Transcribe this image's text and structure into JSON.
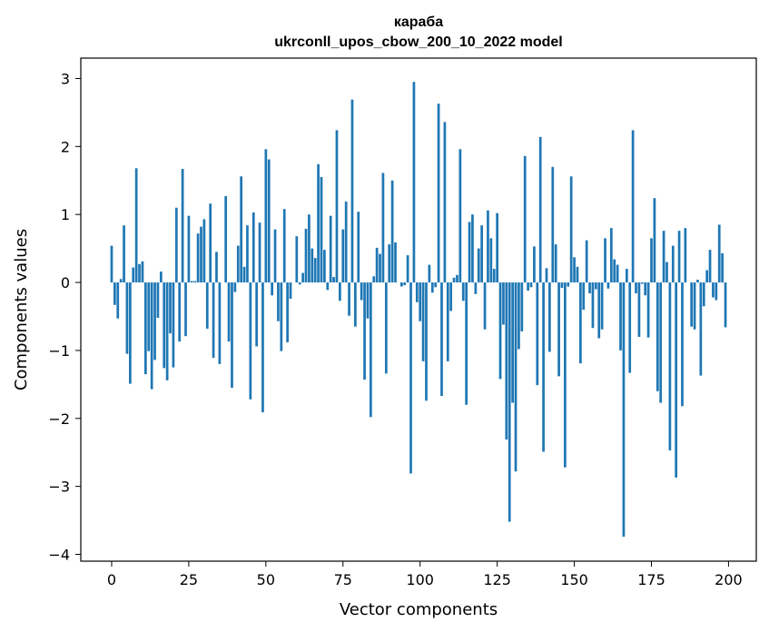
{
  "chart_data": {
    "type": "bar",
    "title": "караба",
    "subtitle": "ukrconll_upos_cbow_200_10_2022 model",
    "xlabel": "Vector components",
    "ylabel": "Components values",
    "xlim": [
      -10,
      209
    ],
    "ylim": [
      -4.1,
      3.3
    ],
    "xticks": [
      0,
      25,
      50,
      75,
      100,
      125,
      150,
      175,
      200
    ],
    "yticks": [
      -4,
      -3,
      -2,
      -1,
      0,
      1,
      2,
      3
    ],
    "ytick_labels": [
      "−4",
      "−3",
      "−2",
      "−1",
      "0",
      "1",
      "2",
      "3"
    ],
    "bar_color": "#1f77b4",
    "grid": false,
    "x": [
      0,
      1,
      2,
      3,
      4,
      5,
      6,
      7,
      8,
      9,
      10,
      11,
      12,
      13,
      14,
      15,
      16,
      17,
      18,
      19,
      20,
      21,
      22,
      23,
      24,
      25,
      26,
      27,
      28,
      29,
      30,
      31,
      32,
      33,
      34,
      35,
      36,
      37,
      38,
      39,
      40,
      41,
      42,
      43,
      44,
      45,
      46,
      47,
      48,
      49,
      50,
      51,
      52,
      53,
      54,
      55,
      56,
      57,
      58,
      59,
      60,
      61,
      62,
      63,
      64,
      65,
      66,
      67,
      68,
      69,
      70,
      71,
      72,
      73,
      74,
      75,
      76,
      77,
      78,
      79,
      80,
      81,
      82,
      83,
      84,
      85,
      86,
      87,
      88,
      89,
      90,
      91,
      92,
      93,
      94,
      95,
      96,
      97,
      98,
      99,
      100,
      101,
      102,
      103,
      104,
      105,
      106,
      107,
      108,
      109,
      110,
      111,
      112,
      113,
      114,
      115,
      116,
      117,
      118,
      119,
      120,
      121,
      122,
      123,
      124,
      125,
      126,
      127,
      128,
      129,
      130,
      131,
      132,
      133,
      134,
      135,
      136,
      137,
      138,
      139,
      140,
      141,
      142,
      143,
      144,
      145,
      146,
      147,
      148,
      149,
      150,
      151,
      152,
      153,
      154,
      155,
      156,
      157,
      158,
      159,
      160,
      161,
      162,
      163,
      164,
      165,
      166,
      167,
      168,
      169,
      170,
      171,
      172,
      173,
      174,
      175,
      176,
      177,
      178,
      179,
      180,
      181,
      182,
      183,
      184,
      185,
      186,
      187,
      188,
      189,
      190,
      191,
      192,
      193,
      194,
      195,
      196,
      197,
      198,
      199
    ],
    "values": [
      0.54,
      -0.33,
      -0.53,
      0.05,
      0.84,
      -1.05,
      -1.49,
      0.22,
      1.68,
      0.27,
      0.31,
      -1.35,
      -1.01,
      -1.57,
      -1.14,
      -0.52,
      0.16,
      -1.26,
      -1.44,
      -0.75,
      -1.25,
      1.1,
      -0.87,
      1.67,
      -0.79,
      0.98,
      0.02,
      0.02,
      0.72,
      0.82,
      0.93,
      -0.68,
      1.16,
      -1.11,
      0.45,
      -1.2,
      0.0,
      1.27,
      -0.87,
      -1.55,
      -0.14,
      0.54,
      1.56,
      0.23,
      0.84,
      -1.72,
      1.03,
      -0.94,
      0.88,
      -1.91,
      1.96,
      1.81,
      -0.19,
      0.78,
      -0.57,
      -1.01,
      1.08,
      -0.88,
      -0.24,
      0.0,
      0.68,
      -0.03,
      0.14,
      0.79,
      1.0,
      0.5,
      0.36,
      1.74,
      1.55,
      0.48,
      -0.11,
      0.98,
      0.08,
      2.24,
      -0.27,
      0.78,
      1.19,
      -0.49,
      2.69,
      -0.65,
      1.04,
      -0.26,
      -1.43,
      -0.53,
      -1.98,
      0.09,
      0.51,
      0.42,
      1.61,
      -1.34,
      0.56,
      1.5,
      0.59,
      0.0,
      -0.06,
      -0.04,
      0.4,
      -2.81,
      2.95,
      -0.29,
      -0.57,
      -1.16,
      -1.74,
      0.26,
      -0.15,
      -0.07,
      2.63,
      -1.67,
      2.36,
      -1.16,
      -0.42,
      0.07,
      0.11,
      1.96,
      -0.27,
      -1.8,
      0.89,
      1.0,
      -0.17,
      0.5,
      0.84,
      -0.69,
      1.06,
      0.65,
      0.2,
      1.02,
      -1.42,
      -0.62,
      -2.31,
      -3.52,
      -1.77,
      -2.78,
      -0.98,
      -0.72,
      1.86,
      -0.12,
      -0.07,
      0.53,
      -1.51,
      2.14,
      -2.49,
      0.21,
      -1.02,
      1.7,
      0.56,
      -1.38,
      -0.08,
      -2.72,
      -0.06,
      1.56,
      0.37,
      0.23,
      -1.19,
      -0.4,
      0.62,
      -0.16,
      -0.67,
      -0.1,
      -0.82,
      -0.69,
      0.65,
      -0.09,
      0.8,
      0.34,
      0.26,
      -1.0,
      -3.74,
      0.2,
      -1.33,
      2.24,
      -0.16,
      -0.8,
      -0.02,
      -0.19,
      -0.81,
      0.65,
      1.24,
      -1.6,
      -1.77,
      0.76,
      0.3,
      -2.47,
      0.54,
      -2.87,
      0.76,
      -1.82,
      0.8,
      0.0,
      -0.65,
      -0.69,
      0.04,
      -1.37,
      -0.35,
      0.18,
      0.48,
      -0.22,
      -0.26,
      0.85,
      0.43,
      -0.66
    ]
  }
}
